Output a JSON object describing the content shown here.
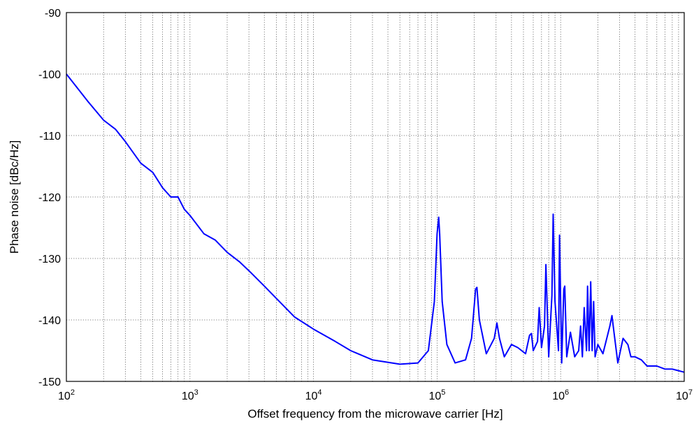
{
  "chart_data": {
    "type": "line",
    "title": "",
    "xlabel": "Offset frequency from the microwave carrier [Hz]",
    "ylabel": "Phase noise [dBc/Hz]",
    "x_scale": "log",
    "xlim": [
      100,
      10000000
    ],
    "ylim": [
      -150,
      -90
    ],
    "grid": true,
    "legend": "none",
    "x_tick_labels": [
      "10^2",
      "10^3",
      "10^4",
      "10^5",
      "10^6",
      "10^7"
    ],
    "y_tick_labels": [
      "-150",
      "-140",
      "-130",
      "-120",
      "-110",
      "-100",
      "-90"
    ],
    "series_color": "#0000ff",
    "series": [
      {
        "x": [
          100,
          150,
          200,
          250,
          300,
          400,
          500,
          600,
          700,
          800,
          900,
          1000,
          1300,
          1600,
          2000,
          2500,
          3000,
          4000,
          5000,
          7000,
          10000,
          15000,
          20000,
          30000,
          50000,
          70000,
          85000,
          95000,
          100000,
          103000,
          105000,
          110000,
          120000,
          140000,
          170000,
          190000,
          205000,
          210000,
          220000,
          250000,
          290000,
          305000,
          320000,
          350000,
          400000,
          450000,
          520000,
          560000,
          580000,
          600000,
          650000,
          670000,
          700000,
          740000,
          760000,
          800000,
          850000,
          870000,
          900000,
          960000,
          980000,
          1020000,
          1060000,
          1080000,
          1120000,
          1200000,
          1300000,
          1400000,
          1450000,
          1500000,
          1550000,
          1620000,
          1650000,
          1700000,
          1750000,
          1800000,
          1850000,
          1900000,
          2000000,
          2200000,
          2500000,
          2600000,
          2700000,
          2900000,
          3200000,
          3500000,
          3700000,
          4000000,
          4500000,
          5000000,
          6000000,
          7000000,
          8000000,
          10000000
        ],
        "y": [
          -100,
          -104.5,
          -107.5,
          -109,
          -111,
          -114.5,
          -116,
          -118.5,
          -120,
          -120,
          -122,
          -123,
          -126,
          -127,
          -129,
          -130.5,
          -132,
          -134.5,
          -136.5,
          -139.5,
          -141.5,
          -143.5,
          -145,
          -146.5,
          -147.2,
          -147,
          -145,
          -137,
          -126,
          -123.3,
          -126,
          -137,
          -144,
          -147,
          -146.5,
          -143,
          -135,
          -134.7,
          -140,
          -145.5,
          -143,
          -140.5,
          -143,
          -146,
          -144,
          -144.5,
          -145.5,
          -142.5,
          -142.2,
          -145,
          -143.5,
          -138,
          -144.5,
          -141,
          -131,
          -146,
          -136,
          -122.8,
          -137,
          -145,
          -126.2,
          -147,
          -135,
          -134.5,
          -146,
          -142,
          -146,
          -145,
          -141,
          -146,
          -138,
          -145,
          -134.5,
          -145,
          -133.8,
          -145,
          -137,
          -146,
          -144,
          -145.5,
          -141,
          -139.3,
          -142,
          -147,
          -143,
          -144,
          -146,
          -146,
          -146.5,
          -147.5,
          -147.5,
          -148,
          -148,
          -148.5
        ]
      }
    ]
  }
}
